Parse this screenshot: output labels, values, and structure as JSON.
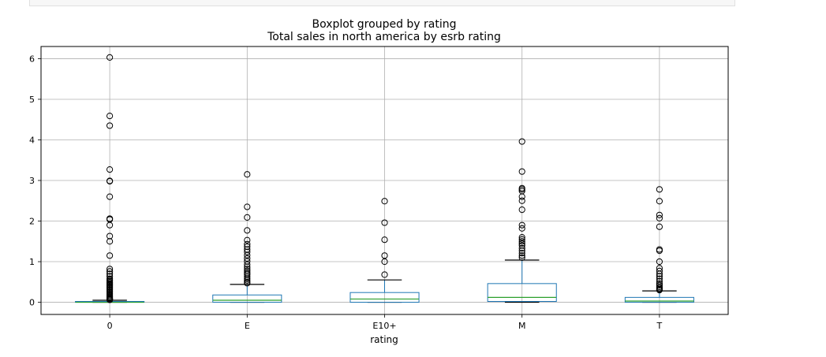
{
  "chart_data": {
    "type": "boxplot",
    "title": "Boxplot grouped by rating",
    "subtitle": "Total sales in north america by esrb rating",
    "xlabel": "rating",
    "ylabel": "",
    "categories": [
      "0",
      "E",
      "E10+",
      "M",
      "T"
    ],
    "ylim": [
      -0.3,
      6.3
    ],
    "yticks": [
      0,
      1,
      2,
      3,
      4,
      5,
      6
    ],
    "grid": true,
    "legend": "none",
    "colors": {
      "box": "#1f77b4",
      "median": "#2ca02c",
      "whisker": "#000000",
      "flier": "#000000",
      "grid": "#b0b0b0"
    },
    "boxes": [
      {
        "category": "0",
        "whislo": 0.0,
        "q1": 0.0,
        "med": 0.0,
        "q3": 0.02,
        "whishi": 0.05,
        "fliers": [
          6.03,
          4.59,
          4.35,
          3.27,
          2.99,
          2.98,
          2.6,
          2.06,
          2.04,
          1.9,
          1.63,
          1.5,
          1.15,
          0.82,
          0.76,
          0.7,
          0.64,
          0.58,
          0.55,
          0.52,
          0.49,
          0.46,
          0.43,
          0.4,
          0.37,
          0.34,
          0.31,
          0.28,
          0.25,
          0.22,
          0.19,
          0.16,
          0.13,
          0.1,
          0.08,
          0.07,
          0.06
        ]
      },
      {
        "category": "E",
        "whislo": 0.0,
        "q1": 0.0,
        "med": 0.05,
        "q3": 0.18,
        "whishi": 0.44,
        "fliers": [
          3.15,
          2.35,
          2.09,
          1.77,
          1.53,
          1.43,
          1.37,
          1.3,
          1.24,
          1.16,
          1.08,
          1.01,
          0.93,
          0.87,
          0.82,
          0.77,
          0.72,
          0.68,
          0.63,
          0.58,
          0.54,
          0.5,
          0.47
        ]
      },
      {
        "category": "E10+",
        "whislo": 0.0,
        "q1": 0.0,
        "med": 0.08,
        "q3": 0.24,
        "whishi": 0.55,
        "fliers": [
          2.49,
          1.96,
          1.54,
          1.15,
          1.0,
          0.68
        ]
      },
      {
        "category": "M",
        "whislo": 0.0,
        "q1": 0.02,
        "med": 0.12,
        "q3": 0.46,
        "whishi": 1.04,
        "fliers": [
          3.96,
          3.22,
          2.81,
          2.78,
          2.74,
          2.6,
          2.5,
          2.28,
          1.9,
          1.82,
          1.6,
          1.55,
          1.5,
          1.45,
          1.4,
          1.33,
          1.27,
          1.21,
          1.15,
          1.1
        ]
      },
      {
        "category": "T",
        "whislo": 0.0,
        "q1": 0.0,
        "med": 0.03,
        "q3": 0.12,
        "whishi": 0.28,
        "fliers": [
          2.78,
          2.49,
          2.15,
          2.07,
          1.86,
          1.3,
          1.27,
          1.0,
          0.84,
          0.77,
          0.7,
          0.64,
          0.58,
          0.52,
          0.46,
          0.42,
          0.38,
          0.35,
          0.32,
          0.3
        ]
      }
    ]
  }
}
